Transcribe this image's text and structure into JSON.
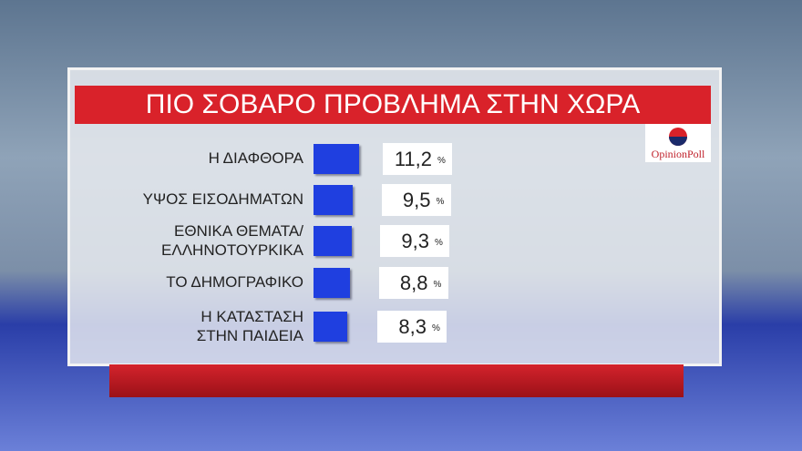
{
  "chart_data": {
    "type": "bar",
    "title": "ΠΙΟ ΣΟΒΑΡΟ ΠΡΟΒΛΗΜΑ ΣΤΗΝ ΧΩΡΑ",
    "categories": [
      "Η ΔΙΑΦΘΟΡΑ",
      "ΥΨΟΣ ΕΙΣΟΔΗΜΑΤΩΝ",
      "ΕΘΝΙΚΑ ΘΕΜΑΤΑ/\nΕΛΛΗΝΟΤΟΥΡΚΙΚΑ",
      "ΤΟ ΔΗΜΟΓΡΑΦΙΚΟ",
      "Η ΚΑΤΑΣΤΑΣΗ\nΣΤΗΝ ΠΑΙΔΕΙΑ"
    ],
    "values": [
      11.2,
      9.5,
      9.3,
      8.8,
      8.3
    ],
    "value_labels": [
      "11,2",
      "9,5",
      "9,3",
      "8,8",
      "8,3"
    ],
    "unit": "%",
    "color": "#1f3fe0",
    "logo": "OpinionPoll"
  }
}
